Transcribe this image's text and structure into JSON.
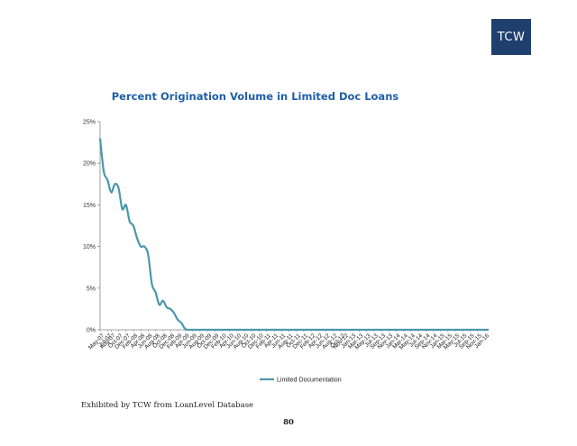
{
  "logo": {
    "text": "TCW",
    "color": "#1f3f6e"
  },
  "chart_data": {
    "type": "line",
    "title": "Percent Origination Volume in Limited Doc Loans",
    "xlabel": "",
    "ylabel": "",
    "ylim": [
      0,
      0.25
    ],
    "yticks": [
      "0%",
      "5%",
      "10%",
      "15%",
      "20%",
      "25%"
    ],
    "grid": false,
    "legend_position": "bottom",
    "line_color": "#4a98ac",
    "categories": [
      "May-07",
      "Jun-07",
      "Jul-07",
      "Aug-07",
      "Sep-07",
      "Oct-07",
      "Nov-07",
      "Dec-07",
      "Jan-08",
      "Feb-08",
      "Mar-08",
      "Apr-08",
      "May-08",
      "Jun-08",
      "Jul-08",
      "Aug-08",
      "Sep-08",
      "Oct-08",
      "Nov-08",
      "Dec-08",
      "Jan-09",
      "Feb-09",
      "Mar-09",
      "Apr-09",
      "May-09",
      "Jun-09",
      "Jul-09",
      "Aug-09",
      "Sep-09",
      "Oct-09",
      "Nov-09",
      "Dec-09",
      "Jan-10",
      "Feb-10",
      "Mar-10",
      "Apr-10",
      "May-10",
      "Jun-10",
      "Jul-10",
      "Aug-10",
      "Sep-10",
      "Oct-10",
      "Nov-10",
      "Dec-10",
      "Jan-11",
      "Feb-11",
      "Mar-11",
      "Apr-11",
      "May-11",
      "Jun-11",
      "Jul-11",
      "Aug-11",
      "Sep-11",
      "Oct-11",
      "Nov-11",
      "Dec-11",
      "Jan-12",
      "Feb-12",
      "Mar-12",
      "Apr-12",
      "May-12",
      "Jun-12",
      "Jul-12",
      "Aug-12",
      "Sep-12",
      "Oct-12",
      "Nov-12",
      "Dec-12",
      "Jan-13",
      "Feb-13",
      "Mar-13",
      "Apr-13",
      "May-13",
      "Jun-13",
      "Jul-13",
      "Aug-13",
      "Sep-13",
      "Oct-13",
      "Nov-13",
      "Dec-13",
      "Jan-14",
      "Feb-14",
      "Mar-14",
      "Apr-14",
      "May-14",
      "Jun-14",
      "Jul-14",
      "Aug-14",
      "Sep-14",
      "Oct-14",
      "Nov-14",
      "Dec-14",
      "Jan-15",
      "Feb-15",
      "Mar-15",
      "Apr-15",
      "May-15",
      "Jun-15",
      "Jul-15",
      "Aug-15",
      "Sep-15",
      "Oct-15",
      "Nov-15",
      "Dec-15",
      "Jan-16",
      "Feb-16"
    ],
    "tick_labels": [
      "May-07",
      "Jul-07",
      "Aug-07",
      "Oct-07",
      "Dec-07",
      "Feb-08",
      "Apr-08",
      "Jun-08",
      "Aug-08",
      "Oct-08",
      "Dec-08",
      "Feb-09",
      "Apr-09",
      "Jun-09",
      "Aug-09",
      "Oct-09",
      "Dec-09",
      "Feb-10",
      "Apr-10",
      "Jun-10",
      "Aug-10",
      "Oct-10",
      "Dec-10",
      "Feb-11",
      "Apr-11",
      "Jun-11",
      "Aug-11",
      "Oct-11",
      "Dec-11",
      "Feb-12",
      "Apr-12",
      "Jun-12",
      "Aug-12",
      "Oct-12",
      "Nov-12",
      "Jan-13",
      "Mar-13",
      "May-13",
      "Jul-13",
      "Sep-13",
      "Nov-13",
      "Jan-14",
      "Mar-14",
      "May-14",
      "Jul-14",
      "Sep-14",
      "Nov-14",
      "Jan-15",
      "Mar-15",
      "May-15",
      "Jul-15",
      "Sep-15",
      "Nov-15",
      "Jan-16"
    ],
    "series": [
      {
        "name": "Limited Documentation",
        "values": [
          0.23,
          0.19,
          0.18,
          0.165,
          0.175,
          0.17,
          0.145,
          0.15,
          0.13,
          0.125,
          0.11,
          0.1,
          0.1,
          0.09,
          0.055,
          0.045,
          0.03,
          0.035,
          0.027,
          0.025,
          0.02,
          0.012,
          0.008,
          0.001,
          0,
          0,
          0,
          0,
          0,
          0,
          0,
          0,
          0,
          0,
          0,
          0,
          0,
          0,
          0,
          0,
          0,
          0,
          0,
          0,
          0,
          0,
          0,
          0,
          0,
          0,
          0,
          0,
          0,
          0,
          0,
          0,
          0,
          0,
          0,
          0,
          0,
          0,
          0,
          0,
          0,
          0,
          0,
          0,
          0,
          0,
          0,
          0,
          0,
          0,
          0,
          0,
          0,
          0,
          0,
          0,
          0,
          0,
          0,
          0,
          0,
          0,
          0,
          0,
          0,
          0,
          0,
          0,
          0,
          0,
          0,
          0,
          0,
          0,
          0,
          0,
          0,
          0,
          0,
          0,
          0,
          0
        ]
      }
    ]
  },
  "footer": {
    "source": "Exhibited by TCW from LoanLevel Database",
    "page_number": "80"
  }
}
